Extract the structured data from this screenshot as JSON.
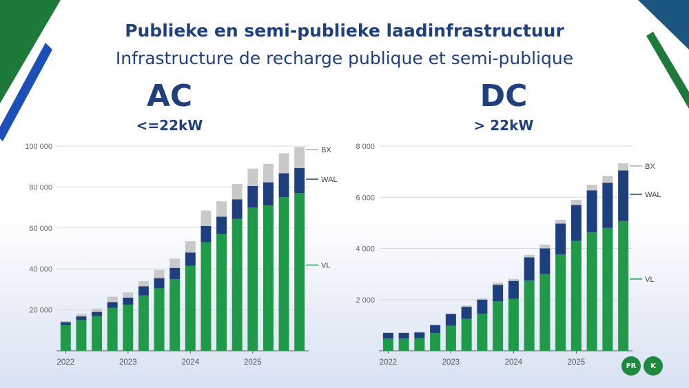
{
  "header": {
    "title_nl": "Publieke en semi-publieke laadinfrastructuur",
    "title_fr": "Infrastructure de recharge publique et semi-publique"
  },
  "ac": {
    "heading": "AC",
    "subheading": "<=22kW"
  },
  "dc": {
    "heading": "DC",
    "subheading": "> 22kW"
  },
  "badges": {
    "fr": "FR",
    "k": "K"
  },
  "colors": {
    "vl": "#1f9a48",
    "wal": "#1d3f7e",
    "bx": "#c9c9c9",
    "title": "#1f3f7f",
    "grid": "#d9d9d9"
  },
  "chart_data": [
    {
      "type": "bar",
      "stacked": true,
      "title": "AC <=22kW",
      "x_labels": [
        "2022",
        "2023",
        "2024",
        "2025"
      ],
      "periods": [
        "2022-Q1",
        "2022-Q2",
        "2022-Q3",
        "2022-Q4",
        "2023-Q1",
        "2023-Q2",
        "2023-Q3",
        "2023-Q4",
        "2024-Q1",
        "2024-Q2",
        "2024-Q3",
        "2024-Q4",
        "2025-Q1",
        "2025-Q2",
        "2025-Q3",
        "2025-Q4"
      ],
      "ylim": [
        0,
        100000
      ],
      "yticks": [
        20000,
        40000,
        60000,
        80000,
        100000
      ],
      "ytick_labels": [
        "20 000",
        "40 000",
        "60 000",
        "80 000",
        "100 000"
      ],
      "series": [
        {
          "name": "VL",
          "values": [
            12500,
            15000,
            17000,
            21000,
            22500,
            27000,
            30500,
            35000,
            41500,
            53000,
            57000,
            64500,
            70000,
            71000,
            75000,
            77000
          ]
        },
        {
          "name": "WAL",
          "values": [
            1500,
            1800,
            2000,
            2800,
            3500,
            4500,
            5000,
            5500,
            6500,
            8000,
            8500,
            9500,
            10500,
            11300,
            11700,
            12300
          ]
        },
        {
          "name": "BX",
          "values": [
            500,
            1200,
            1600,
            2600,
            2500,
            2500,
            4000,
            4500,
            5500,
            7500,
            7500,
            7500,
            8500,
            9000,
            9800,
            10300
          ]
        }
      ],
      "legend": [
        "BX",
        "WAL",
        "VL"
      ]
    },
    {
      "type": "bar",
      "stacked": true,
      "title": "DC > 22kW",
      "x_labels": [
        "2022",
        "2023",
        "2024",
        "2025"
      ],
      "periods": [
        "2022-Q1",
        "2022-Q2",
        "2022-Q3",
        "2022-Q4",
        "2023-Q1",
        "2023-Q2",
        "2023-Q3",
        "2023-Q4",
        "2024-Q1",
        "2024-Q2",
        "2024-Q3",
        "2024-Q4",
        "2025-Q1",
        "2025-Q2",
        "2025-Q3",
        "2025-Q4"
      ],
      "ylim": [
        0,
        8000
      ],
      "yticks": [
        2000,
        4000,
        6000,
        8000
      ],
      "ytick_labels": [
        "2 000",
        "4 000",
        "6 000",
        "8 000"
      ],
      "series": [
        {
          "name": "VL",
          "values": [
            480,
            480,
            500,
            700,
            980,
            1250,
            1450,
            1930,
            2030,
            2750,
            3000,
            3770,
            4300,
            4630,
            4800,
            5070
          ]
        },
        {
          "name": "WAL",
          "values": [
            220,
            220,
            220,
            300,
            450,
            470,
            550,
            650,
            700,
            900,
            1000,
            1200,
            1400,
            1640,
            1770,
            1980
          ]
        },
        {
          "name": "BX",
          "values": [
            20,
            20,
            30,
            30,
            50,
            50,
            50,
            80,
            80,
            100,
            150,
            150,
            200,
            220,
            270,
            280
          ]
        }
      ],
      "legend": [
        "BX",
        "WAL",
        "VL"
      ]
    }
  ]
}
